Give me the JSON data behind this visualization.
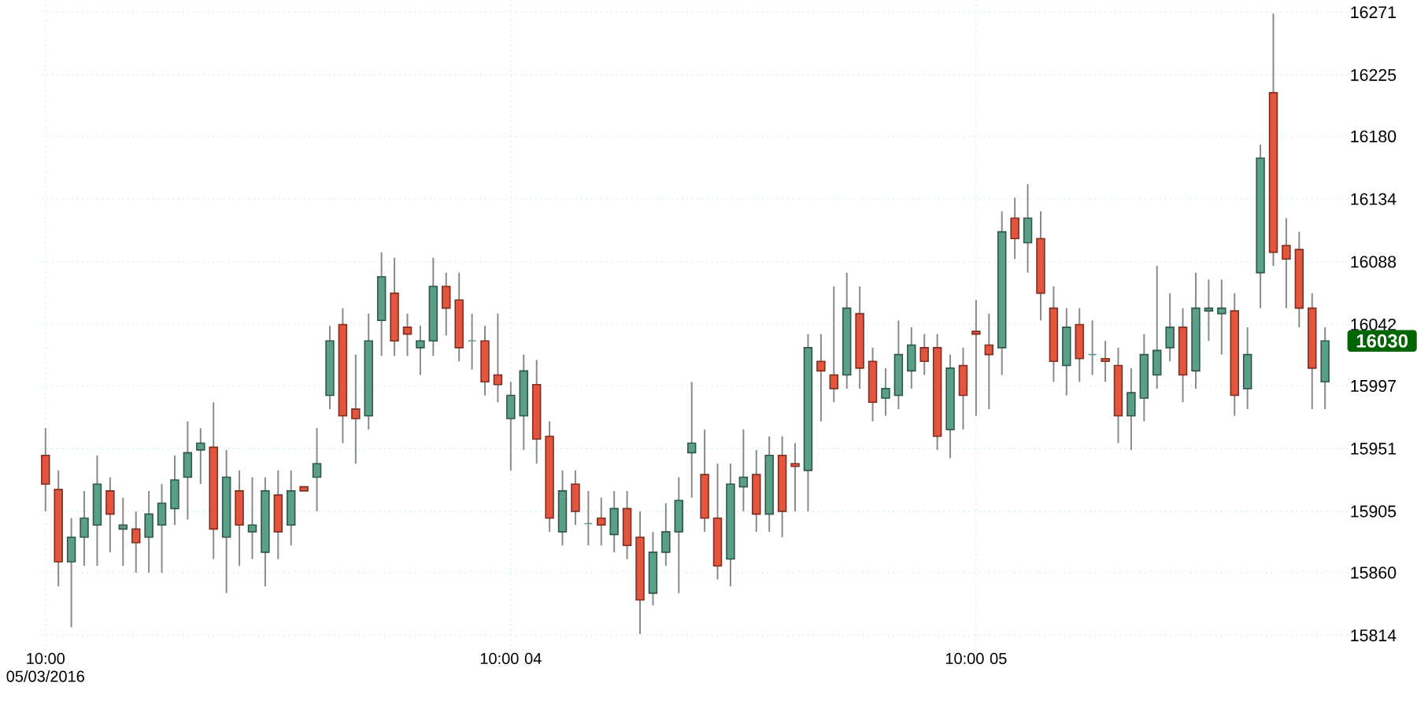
{
  "chart_data": {
    "type": "candlestick",
    "categories": [
      "10:00 05/03/2016",
      null,
      null,
      null,
      null,
      null,
      null,
      null,
      null,
      null,
      null,
      null,
      null,
      null,
      null,
      null,
      null,
      null,
      null,
      null,
      null,
      null,
      null,
      null,
      null,
      null,
      null,
      null,
      null,
      null,
      null,
      null,
      null,
      null,
      null,
      null,
      "10:00 04",
      null,
      null,
      null,
      null,
      null,
      null,
      null,
      null,
      null,
      null,
      null,
      null,
      null,
      null,
      null,
      null,
      null,
      null,
      null,
      null,
      null,
      null,
      null,
      null,
      null,
      null,
      null,
      null,
      null,
      null,
      null,
      null,
      null,
      null,
      null,
      "10:00 05",
      null,
      null,
      null,
      null,
      null,
      null,
      null,
      null,
      null,
      null,
      null,
      null,
      null,
      null,
      null,
      null,
      null,
      null,
      null,
      null,
      null,
      null,
      null,
      null,
      null,
      null,
      null
    ],
    "ohlc": [
      [
        15946,
        15966,
        15905,
        15925
      ],
      [
        15921,
        15935,
        15850,
        15868
      ],
      [
        15868,
        15900,
        15820,
        15886
      ],
      [
        15886,
        15920,
        15865,
        15900
      ],
      [
        15895,
        15946,
        15865,
        15925
      ],
      [
        15920,
        15930,
        15875,
        15903
      ],
      [
        15892,
        15915,
        15865,
        15895
      ],
      [
        15892,
        15905,
        15860,
        15882
      ],
      [
        15886,
        15920,
        15860,
        15903
      ],
      [
        15895,
        15925,
        15860,
        15911
      ],
      [
        15907,
        15946,
        15895,
        15928
      ],
      [
        15930,
        15971,
        15899,
        15948
      ],
      [
        15950,
        15966,
        15925,
        15955
      ],
      [
        15952,
        15985,
        15870,
        15892
      ],
      [
        15886,
        15950,
        15845,
        15930
      ],
      [
        15920,
        15935,
        15865,
        15895
      ],
      [
        15890,
        15930,
        15870,
        15895
      ],
      [
        15875,
        15930,
        15850,
        15920
      ],
      [
        15917,
        15935,
        15870,
        15890
      ],
      [
        15895,
        15935,
        15880,
        15920
      ],
      [
        15923,
        15923,
        15920,
        15920
      ],
      [
        15930,
        15966,
        15905,
        15940
      ],
      [
        15990,
        16041,
        15980,
        16030
      ],
      [
        16042,
        16054,
        15955,
        15975
      ],
      [
        15980,
        16020,
        15940,
        15973
      ],
      [
        15975,
        16050,
        15965,
        16030
      ],
      [
        16045,
        16095,
        16019,
        16077
      ],
      [
        16065,
        16091,
        16019,
        16030
      ],
      [
        16040,
        16050,
        16019,
        16035
      ],
      [
        16025,
        16041,
        16005,
        16030
      ],
      [
        16030,
        16091,
        16019,
        16070
      ],
      [
        16070,
        16080,
        16034,
        16054
      ],
      [
        16060,
        16080,
        16015,
        16025
      ],
      [
        16030,
        16050,
        16009,
        16030
      ],
      [
        16030,
        16041,
        15990,
        16000
      ],
      [
        16005,
        16050,
        15985,
        15998
      ],
      [
        15973,
        16000,
        15935,
        15990
      ],
      [
        15975,
        16020,
        15950,
        16008
      ],
      [
        15998,
        16016,
        15940,
        15958
      ],
      [
        15960,
        15971,
        15890,
        15900
      ],
      [
        15890,
        15935,
        15880,
        15920
      ],
      [
        15925,
        15935,
        15895,
        15905
      ],
      [
        15896,
        15920,
        15880,
        15896
      ],
      [
        15900,
        15915,
        15880,
        15895
      ],
      [
        15888,
        15920,
        15875,
        15907
      ],
      [
        15907,
        15920,
        15870,
        15880
      ],
      [
        15886,
        15905,
        15815,
        15840
      ],
      [
        15845,
        15890,
        15836,
        15875
      ],
      [
        15875,
        15911,
        15865,
        15890
      ],
      [
        15890,
        15930,
        15845,
        15913
      ],
      [
        15948,
        16000,
        15915,
        15955
      ],
      [
        15932,
        15965,
        15890,
        15900
      ],
      [
        15900,
        15940,
        15855,
        15865
      ],
      [
        15870,
        15940,
        15850,
        15925
      ],
      [
        15923,
        15965,
        15905,
        15930
      ],
      [
        15932,
        15950,
        15890,
        15903
      ],
      [
        15903,
        15960,
        15890,
        15946
      ],
      [
        15946,
        15960,
        15886,
        15905
      ],
      [
        15940,
        15955,
        15905,
        15938
      ],
      [
        15935,
        16035,
        15905,
        16025
      ],
      [
        16015,
        16035,
        15971,
        16008
      ],
      [
        16005,
        16070,
        15985,
        15995
      ],
      [
        16005,
        16080,
        15995,
        16054
      ],
      [
        16050,
        16070,
        15995,
        16010
      ],
      [
        16015,
        16025,
        15971,
        15985
      ],
      [
        15988,
        16010,
        15975,
        15995
      ],
      [
        15990,
        16045,
        15980,
        16020
      ],
      [
        16008,
        16040,
        15995,
        16027
      ],
      [
        16025,
        16035,
        16005,
        16015
      ],
      [
        16025,
        16035,
        15950,
        15960
      ],
      [
        15965,
        16020,
        15944,
        16010
      ],
      [
        16012,
        16025,
        15965,
        15990
      ],
      [
        16037,
        16060,
        15975,
        16035
      ],
      [
        16027,
        16050,
        15980,
        16020
      ],
      [
        16025,
        16125,
        16005,
        16110
      ],
      [
        16120,
        16135,
        16090,
        16105
      ],
      [
        16102,
        16145,
        16080,
        16120
      ],
      [
        16105,
        16125,
        16045,
        16065
      ],
      [
        16054,
        16070,
        16000,
        16015
      ],
      [
        16012,
        16054,
        15990,
        16040
      ],
      [
        16042,
        16054,
        16000,
        16017
      ],
      [
        16020,
        16045,
        16005,
        16020
      ],
      [
        16017,
        16030,
        16000,
        16015
      ],
      [
        16012,
        16025,
        15955,
        15975
      ],
      [
        15975,
        16010,
        15950,
        15992
      ],
      [
        15988,
        16035,
        15971,
        16020
      ],
      [
        16005,
        16085,
        15995,
        16023
      ],
      [
        16025,
        16065,
        16015,
        16040
      ],
      [
        16040,
        16054,
        15985,
        16005
      ],
      [
        16008,
        16080,
        15995,
        16054
      ],
      [
        16052,
        16075,
        16030,
        16054
      ],
      [
        16050,
        16075,
        16020,
        16054
      ],
      [
        16052,
        16065,
        15975,
        15990
      ],
      [
        15995,
        16040,
        15980,
        16020
      ],
      [
        16080,
        16174,
        16054,
        16164
      ],
      [
        16212,
        16270,
        16085,
        16095
      ],
      [
        16100,
        16120,
        16054,
        16090
      ],
      [
        16097,
        16110,
        16040,
        16054
      ],
      [
        16054,
        16065,
        15980,
        16010
      ],
      [
        16000,
        16040,
        15980,
        16030
      ]
    ],
    "colors": [
      "#e3553d",
      "#e3553d",
      "#5a9f87",
      "#5a9f87",
      "#5a9f87",
      "#e3553d",
      "#5a9f87",
      "#e3553d",
      "#5a9f87",
      "#5a9f87",
      "#5a9f87",
      "#5a9f87",
      "#5a9f87",
      "#e3553d",
      "#5a9f87",
      "#e3553d",
      "#5a9f87",
      "#5a9f87",
      "#e3553d",
      "#5a9f87",
      "#e3553d",
      "#5a9f87",
      "#5a9f87",
      "#e3553d",
      "#e3553d",
      "#5a9f87",
      "#5a9f87",
      "#e3553d",
      "#e3553d",
      "#5a9f87",
      "#5a9f87",
      "#e3553d",
      "#e3553d",
      "#5a9f87",
      "#e3553d",
      "#e3553d",
      "#5a9f87",
      "#5a9f87",
      "#e3553d",
      "#e3553d",
      "#5a9f87",
      "#e3553d",
      "#5a9f87",
      "#e3553d",
      "#5a9f87",
      "#e3553d",
      "#e3553d",
      "#5a9f87",
      "#5a9f87",
      "#5a9f87",
      "#5a9f87",
      "#e3553d",
      "#e3553d",
      "#5a9f87",
      "#5a9f87",
      "#e3553d",
      "#5a9f87",
      "#e3553d",
      "#e3553d",
      "#5a9f87",
      "#e3553d",
      "#e3553d",
      "#5a9f87",
      "#e3553d",
      "#e3553d",
      "#5a9f87",
      "#5a9f87",
      "#5a9f87",
      "#e3553d",
      "#e3553d",
      "#5a9f87",
      "#e3553d",
      "#e3553d",
      "#e3553d",
      "#5a9f87",
      "#e3553d",
      "#5a9f87",
      "#e3553d",
      "#e3553d",
      "#5a9f87",
      "#e3553d",
      "#5a9f87",
      "#e3553d",
      "#e3553d",
      "#5a9f87",
      "#5a9f87",
      "#5a9f87",
      "#5a9f87",
      "#e3553d",
      "#5a9f87",
      "#5a9f87",
      "#5a9f87",
      "#e3553d",
      "#5a9f87",
      "#5a9f87",
      "#e3553d",
      "#e3553d",
      "#e3553d",
      "#e3553d",
      "#5a9f87"
    ],
    "ylim": [
      15803,
      16280
    ],
    "yticks": [
      15814,
      15860,
      15905,
      15951,
      15997,
      16042,
      16088,
      16134,
      16180,
      16225,
      16271
    ],
    "grid": true,
    "annotations": [
      "16030"
    ]
  }
}
